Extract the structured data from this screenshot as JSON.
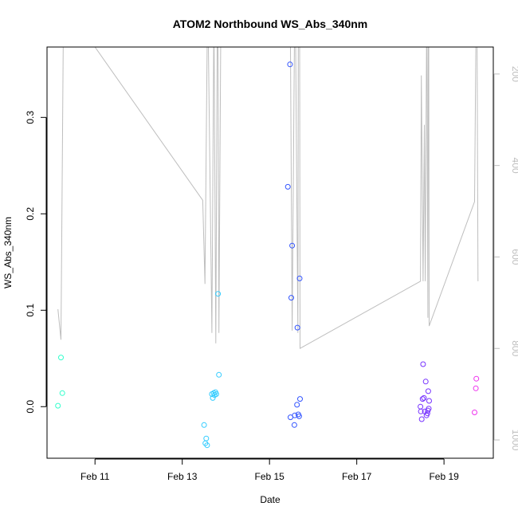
{
  "chart_data": {
    "type": "scatter",
    "title": "ATOM2 Northbound WS_Abs_340nm",
    "xlabel": "Date",
    "ylabel": "WS_Abs_340nm",
    "x_ticks": [
      {
        "value": 11,
        "label": "Feb 11"
      },
      {
        "value": 13,
        "label": "Feb 13"
      },
      {
        "value": 15,
        "label": "Feb 15"
      },
      {
        "value": 17,
        "label": "Feb 17"
      },
      {
        "value": 19,
        "label": "Feb 19"
      }
    ],
    "y_ticks": [
      {
        "value": 0.0,
        "label": "0.0"
      },
      {
        "value": 0.1,
        "label": "0.1"
      },
      {
        "value": 0.2,
        "label": "0.2"
      },
      {
        "value": 0.3,
        "label": "0.3"
      }
    ],
    "y2_ticks": [
      {
        "value": 200,
        "label": "200"
      },
      {
        "value": 400,
        "label": "400"
      },
      {
        "value": 600,
        "label": "600"
      },
      {
        "value": 800,
        "label": "800"
      },
      {
        "value": 1000,
        "label": "1000"
      }
    ],
    "xlim": [
      9.9,
      20.13
    ],
    "ylim": [
      -0.0535,
      0.373
    ],
    "y2lim": [
      1040,
      141
    ],
    "y2_reversed": true,
    "grid": false,
    "points": [
      {
        "x": 10.15,
        "y": 0.001,
        "color": "#33ffcc"
      },
      {
        "x": 10.22,
        "y": 0.051,
        "color": "#33ffcc"
      },
      {
        "x": 10.25,
        "y": 0.014,
        "color": "#33ffcc"
      },
      {
        "x": 13.5,
        "y": -0.019,
        "color": "#33ccff"
      },
      {
        "x": 13.53,
        "y": -0.038,
        "color": "#33ccff"
      },
      {
        "x": 13.55,
        "y": -0.033,
        "color": "#33ccff"
      },
      {
        "x": 13.57,
        "y": -0.04,
        "color": "#33ccff"
      },
      {
        "x": 13.68,
        "y": 0.013,
        "color": "#33ccff"
      },
      {
        "x": 13.7,
        "y": 0.009,
        "color": "#33ccff"
      },
      {
        "x": 13.72,
        "y": 0.014,
        "color": "#33ccff"
      },
      {
        "x": 13.74,
        "y": 0.012,
        "color": "#33ccff"
      },
      {
        "x": 13.76,
        "y": 0.015,
        "color": "#33ccff"
      },
      {
        "x": 13.78,
        "y": 0.013,
        "color": "#33ccff"
      },
      {
        "x": 13.82,
        "y": 0.117,
        "color": "#33ccff"
      },
      {
        "x": 13.84,
        "y": 0.033,
        "color": "#33ccff"
      },
      {
        "x": 15.42,
        "y": 0.228,
        "color": "#3355ff"
      },
      {
        "x": 15.47,
        "y": 0.355,
        "color": "#3355ff"
      },
      {
        "x": 15.5,
        "y": 0.113,
        "color": "#3355ff"
      },
      {
        "x": 15.52,
        "y": 0.167,
        "color": "#3355ff"
      },
      {
        "x": 15.48,
        "y": -0.011,
        "color": "#3355ff"
      },
      {
        "x": 15.57,
        "y": -0.019,
        "color": "#3355ff"
      },
      {
        "x": 15.58,
        "y": -0.009,
        "color": "#3355ff"
      },
      {
        "x": 15.63,
        "y": 0.002,
        "color": "#3355ff"
      },
      {
        "x": 15.64,
        "y": 0.082,
        "color": "#3355ff"
      },
      {
        "x": 15.66,
        "y": -0.008,
        "color": "#3355ff"
      },
      {
        "x": 15.68,
        "y": -0.01,
        "color": "#3355ff"
      },
      {
        "x": 15.69,
        "y": 0.133,
        "color": "#3355ff"
      },
      {
        "x": 15.7,
        "y": 0.008,
        "color": "#3355ff"
      },
      {
        "x": 18.46,
        "y": 0.0,
        "color": "#7733ff"
      },
      {
        "x": 18.47,
        "y": -0.005,
        "color": "#7733ff"
      },
      {
        "x": 18.49,
        "y": -0.013,
        "color": "#7733ff"
      },
      {
        "x": 18.51,
        "y": 0.008,
        "color": "#7733ff"
      },
      {
        "x": 18.52,
        "y": 0.044,
        "color": "#7733ff"
      },
      {
        "x": 18.54,
        "y": 0.009,
        "color": "#7733ff"
      },
      {
        "x": 18.56,
        "y": -0.005,
        "color": "#7733ff"
      },
      {
        "x": 18.58,
        "y": 0.026,
        "color": "#7733ff"
      },
      {
        "x": 18.6,
        "y": -0.009,
        "color": "#7733ff"
      },
      {
        "x": 18.62,
        "y": -0.007,
        "color": "#7733ff"
      },
      {
        "x": 18.63,
        "y": -0.004,
        "color": "#7733ff"
      },
      {
        "x": 18.64,
        "y": 0.016,
        "color": "#7733ff"
      },
      {
        "x": 18.65,
        "y": -0.002,
        "color": "#7733ff"
      },
      {
        "x": 18.66,
        "y": 0.006,
        "color": "#7733ff"
      },
      {
        "x": 19.7,
        "y": -0.006,
        "color": "#ee33ee"
      },
      {
        "x": 19.73,
        "y": 0.019,
        "color": "#ee33ee"
      },
      {
        "x": 19.74,
        "y": 0.029,
        "color": "#ee33ee"
      }
    ],
    "secondary_line": {
      "color": "#bebebe",
      "axis": "right",
      "points": [
        [
          10.15,
          714
        ],
        [
          10.22,
          781
        ],
        [
          10.27,
          141
        ],
        [
          10.3,
          141
        ],
        [
          11.0,
          141
        ],
        [
          13.47,
          476
        ],
        [
          13.52,
          659
        ],
        [
          13.57,
          141
        ],
        [
          13.6,
          141
        ],
        [
          13.68,
          766
        ],
        [
          13.72,
          141
        ],
        [
          13.73,
          141
        ],
        [
          13.77,
          789
        ],
        [
          13.8,
          141
        ],
        [
          13.82,
          141
        ],
        [
          13.84,
          766
        ],
        [
          13.88,
          141
        ],
        [
          15.44,
          141
        ],
        [
          15.48,
          141
        ],
        [
          15.52,
          761
        ],
        [
          15.57,
          141
        ],
        [
          15.6,
          141
        ],
        [
          15.65,
          766
        ],
        [
          15.66,
          141
        ],
        [
          15.69,
          141
        ],
        [
          15.7,
          800
        ],
        [
          18.46,
          653
        ],
        [
          18.48,
          203
        ],
        [
          18.52,
          653
        ],
        [
          18.55,
          311
        ],
        [
          18.57,
          653
        ],
        [
          18.6,
          141
        ],
        [
          18.61,
          141
        ],
        [
          18.63,
          733
        ],
        [
          18.64,
          141
        ],
        [
          18.65,
          141
        ],
        [
          18.66,
          751
        ],
        [
          19.7,
          479
        ],
        [
          19.73,
          141
        ],
        [
          19.76,
          141
        ],
        [
          19.78,
          653
        ]
      ]
    }
  }
}
